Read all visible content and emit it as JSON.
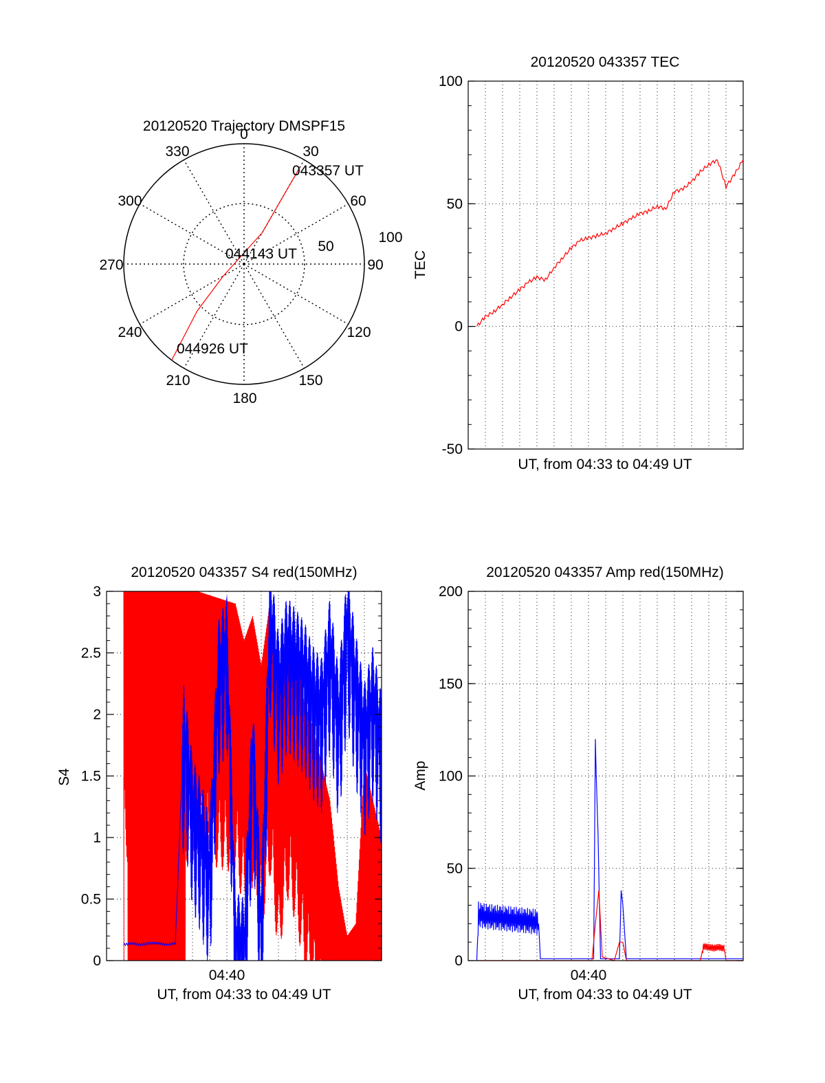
{
  "chart_data": [
    {
      "type": "polar",
      "title": "20120520 Trajectory DMSPF15",
      "azimuth_labels": [
        "0",
        "30",
        "60",
        "90",
        "120",
        "150",
        "180",
        "210",
        "240",
        "270",
        "300",
        "330"
      ],
      "radial_labels": [
        "50",
        "100"
      ],
      "rlim": [
        0,
        100
      ],
      "grid": true,
      "series": [
        {
          "color": "#ff0000",
          "points": [
            {
              "az": 30,
              "r": 93
            },
            {
              "az": 30,
              "r": 60
            },
            {
              "az": 30,
              "r": 30
            },
            {
              "az": 240,
              "r": 20
            },
            {
              "az": 225,
              "r": 55
            },
            {
              "az": 217,
              "r": 100
            }
          ]
        }
      ],
      "annotations": [
        "043357 UT",
        "044143 UT",
        "044926 UT"
      ]
    },
    {
      "type": "line",
      "title": "20120520 043357 TEC",
      "xlabel": "UT, from 04:33 to 04:49 UT",
      "ylabel": "TEC",
      "xlim": [
        0,
        16
      ],
      "ylim": [
        -50,
        100
      ],
      "yticks": [
        "-50",
        "0",
        "50",
        "100"
      ],
      "grid": true,
      "series": [
        {
          "color": "#ff0000",
          "x": [
            0.5,
            1.0,
            1.5,
            2.0,
            2.5,
            3.0,
            3.5,
            4.0,
            4.5,
            5.0,
            5.5,
            6.0,
            6.5,
            7.0,
            7.5,
            8.0,
            8.5,
            9.0,
            9.5,
            10.0,
            10.5,
            11.0,
            11.5,
            12.0,
            12.5,
            13.0,
            13.5,
            14.0,
            14.5,
            15.0,
            15.5,
            16.0
          ],
          "y": [
            0,
            4,
            6,
            9,
            12,
            15,
            18,
            20,
            19,
            24,
            28,
            32,
            35,
            36,
            37,
            38,
            40,
            42,
            44,
            46,
            47,
            49,
            48,
            55,
            56,
            59,
            63,
            66,
            68,
            57,
            62,
            68
          ]
        }
      ]
    },
    {
      "type": "line",
      "title": "20120520 043357 S4 red(150MHz)",
      "xlabel": "UT, from 04:33 to 04:49 UT",
      "ylabel": "S4",
      "xticks": [
        "04:40"
      ],
      "xlim": [
        0,
        16
      ],
      "ylim": [
        0,
        3
      ],
      "yticks": [
        "0",
        "0.5",
        "1",
        "1.5",
        "2",
        "2.5",
        "3"
      ],
      "grid": true,
      "series": [
        {
          "color": "#ff0000",
          "x": [
            1.0,
            1.0,
            2.4,
            2.6,
            2.8,
            3.0,
            3.2,
            3.4,
            4.0,
            4.3,
            4.5,
            4.7,
            4.9,
            5.1,
            5.3,
            7.5,
            8.0,
            8.5,
            9.0,
            9.5,
            10.0,
            10.5,
            11.0,
            11.5,
            12.0,
            12.5,
            13.0,
            13.5,
            14.0,
            14.5,
            15.0,
            15.5,
            16.0
          ],
          "y": [
            0,
            3,
            3,
            3,
            3,
            3,
            3,
            3,
            3,
            3,
            3,
            3,
            3,
            3,
            3,
            2.9,
            2.6,
            2.8,
            2.4,
            2.9,
            2.2,
            2.7,
            2.5,
            2.1,
            1.9,
            1.6,
            1.3,
            0.6,
            0.2,
            0.3,
            1.6,
            1.3,
            1.0
          ]
        },
        {
          "color": "#0000ff",
          "x": [
            1.0,
            1.5,
            2.0,
            2.5,
            3.0,
            3.5,
            4.0,
            4.5,
            5.0,
            5.5,
            6.0,
            6.5,
            7.0,
            7.5,
            8.0,
            8.5,
            9.0,
            9.5,
            10.0,
            10.5,
            11.0,
            11.5,
            12.0,
            12.5,
            13.0,
            13.5,
            14.0,
            14.5,
            15.0,
            15.5,
            16.0
          ],
          "y": [
            0.13,
            0.14,
            0.13,
            0.14,
            0.14,
            0.13,
            0.14,
            1.9,
            1.3,
            1.1,
            0.8,
            2.4,
            2.6,
            0.2,
            0.15,
            1.8,
            0.3,
            2.9,
            2.3,
            2.6,
            2.5,
            2.4,
            2.2,
            2.1,
            2.6,
            2.0,
            2.8,
            2.3,
            1.9,
            2.2,
            1.8
          ]
        }
      ]
    },
    {
      "type": "line",
      "title": "20120520 043357 Amp red(150MHz)",
      "xlabel": "UT, from 04:33 to 04:49 UT",
      "ylabel": "Amp",
      "xticks": [
        "04:40"
      ],
      "xlim": [
        0,
        16
      ],
      "ylim": [
        0,
        200
      ],
      "yticks": [
        "0",
        "50",
        "100",
        "150",
        "200"
      ],
      "grid": true,
      "series": [
        {
          "color": "#0000ff",
          "x": [
            0.5,
            0.6,
            1.0,
            2.0,
            3.0,
            4.0,
            4.1,
            4.2,
            5.0,
            6.0,
            7.0,
            7.3,
            7.4,
            7.45,
            7.55,
            7.7,
            7.8,
            8.5,
            8.8,
            8.9,
            9.0,
            9.2,
            10.0,
            12.0,
            14.0,
            16.0
          ],
          "y": [
            0,
            25,
            24,
            23,
            22,
            21,
            20,
            1,
            1,
            1,
            1,
            1,
            120,
            100,
            70,
            1,
            1,
            1,
            1,
            38,
            30,
            1,
            1,
            1,
            1,
            1
          ]
        },
        {
          "color": "#ff0000",
          "x": [
            0.5,
            4.0,
            7.2,
            7.4,
            7.6,
            7.8,
            8.5,
            8.8,
            9.0,
            9.2,
            13.5,
            13.7,
            14.0,
            14.5,
            14.9,
            15.0,
            16.0
          ],
          "y": [
            0,
            0,
            0,
            20,
            38,
            2,
            0,
            10,
            10,
            0,
            0,
            8,
            7,
            7,
            7,
            0,
            0
          ]
        }
      ]
    }
  ]
}
